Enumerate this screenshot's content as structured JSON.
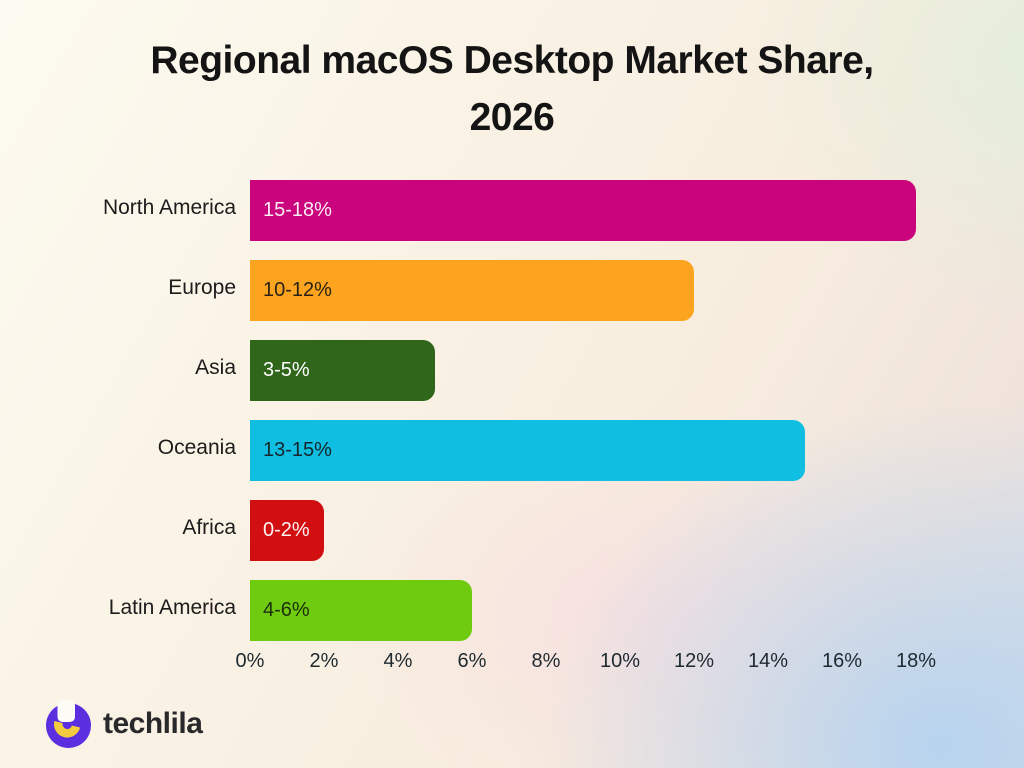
{
  "header": {
    "title_line1": "Regional macOS Desktop Market Share,",
    "title_line2": "2026"
  },
  "chart_data": {
    "type": "bar",
    "orientation": "horizontal",
    "title": "Regional macOS Desktop Market Share, 2026",
    "categories": [
      "North America",
      "Europe",
      "Asia",
      "Oceania",
      "Africa",
      "Latin America"
    ],
    "values": [
      18,
      12,
      5,
      15,
      2,
      6
    ],
    "value_labels": [
      "15-18%",
      "10-12%",
      "3-5%",
      "13-15%",
      "0-2%",
      "4-6%"
    ],
    "bar_colors": [
      "#C9047D",
      "#FCA41F",
      "#2F661A",
      "#0FBEE0",
      "#D10E10",
      "#6FCB10"
    ],
    "value_label_colors": [
      "#FBEBF3",
      "#2b2216",
      "#FFFFFF",
      "#17262c",
      "#FFF3F3",
      "#1d2d08"
    ],
    "x_ticks": [
      "0%",
      "2%",
      "4%",
      "6%",
      "8%",
      "10%",
      "12%",
      "14%",
      "16%",
      "18%"
    ],
    "x_tick_values": [
      0,
      2,
      4,
      6,
      8,
      10,
      12,
      14,
      16,
      18
    ],
    "xlim": [
      0,
      18
    ],
    "xlabel": "",
    "ylabel": "",
    "grid": false,
    "legend": false
  },
  "footer": {
    "brand": "techlila"
  },
  "brand_colors": {
    "logo_purple": "#5B2EE0",
    "logo_yellow": "#F2CC3E",
    "logo_white": "#FDFBF6"
  }
}
